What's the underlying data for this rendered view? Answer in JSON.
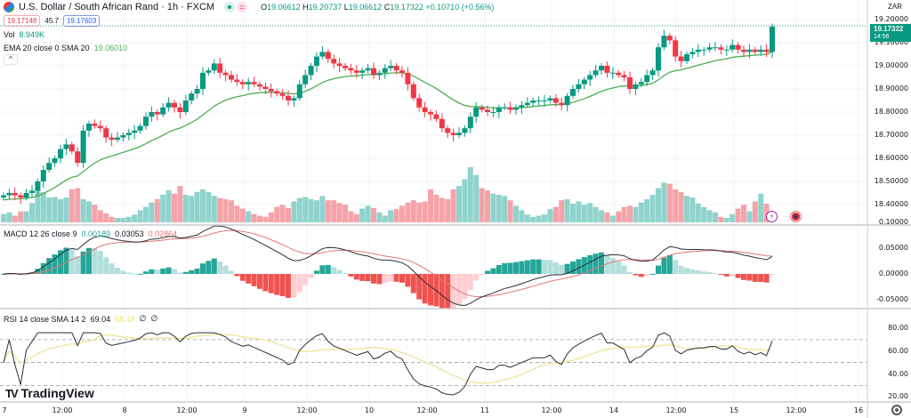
{
  "header": {
    "symbol_title": "U.S. Dollar / South African Rand · 1h · FXCM",
    "ohlc": {
      "open_label": "O",
      "open": "19.06612",
      "high_label": "H",
      "high": "19.20737",
      "low_label": "L",
      "low": "19.06612",
      "close_label": "C",
      "close": "19.17322",
      "change": "+0.10710 (+0.56%)"
    },
    "sell_price": "19.17148",
    "spread": "45.7",
    "buy_price": "19.17603",
    "currency": "ZAR",
    "status_icon_red": "="
  },
  "indicators": {
    "volume": {
      "label": "Vol",
      "value": "8.949K"
    },
    "ema": {
      "label": "EMA 20 close 0 SMA 20",
      "value": "19.06010"
    },
    "macd": {
      "label": "MACD 12 26 close 9",
      "hist": "0.00189",
      "macd": "0.03053",
      "signal": "0.02864"
    },
    "rsi": {
      "label": "RSI 14 close SMA 14 2",
      "rsi": "69.04",
      "sma": "58.48",
      "extra1": "∅",
      "extra2": "∅"
    }
  },
  "price_axis": {
    "labels": [
      "19.20000",
      "19.10000",
      "19.00000",
      "18.90000",
      "18.80000",
      "18.70000",
      "18.60000",
      "18.50000",
      "18.40000"
    ],
    "current_price": "19.17322",
    "countdown": "14:56"
  },
  "macd_axis": {
    "labels": [
      "0.10000",
      "0.05000",
      "0.00000",
      "-0.05000"
    ]
  },
  "rsi_axis": {
    "labels": [
      "80.00",
      "60.00",
      "40.00",
      "20.00"
    ]
  },
  "time_axis": {
    "labels": [
      "7",
      "12:00",
      "8",
      "12:00",
      "9",
      "12:00",
      "10",
      "12:00",
      "11",
      "12:00",
      "14",
      "12:00",
      "15",
      "12:00",
      "16"
    ]
  },
  "branding": {
    "logo_text": "TradingView",
    "logo_mark": "TV"
  },
  "colors": {
    "up": "#089981",
    "down": "#f23645",
    "vol_up": "#8fd3cc",
    "vol_down": "#f5a3a9",
    "ema": "#4caf50",
    "macd_line": "#2a2e39",
    "signal_line": "#e57373",
    "rsi_line": "#2a2e39",
    "rsi_sma": "#f2e7a0",
    "grid": "#f0f3fa"
  },
  "chart_data": {
    "type": "candlestick",
    "title": "U.S. Dollar / South African Rand · 1h · FXCM",
    "ylabel": "ZAR",
    "ylim": [
      18.33,
      19.22
    ],
    "grid": true,
    "close_series": [
      18.44,
      18.45,
      18.44,
      18.43,
      18.45,
      18.46,
      18.5,
      18.55,
      18.58,
      18.6,
      18.64,
      18.66,
      18.63,
      18.58,
      18.72,
      18.75,
      18.74,
      18.73,
      18.69,
      18.68,
      18.69,
      18.7,
      18.71,
      18.72,
      18.74,
      18.78,
      18.8,
      18.79,
      18.82,
      18.84,
      18.82,
      18.8,
      18.85,
      18.88,
      18.9,
      18.97,
      18.98,
      19.01,
      18.97,
      18.96,
      18.94,
      18.93,
      18.92,
      18.93,
      18.92,
      18.91,
      18.9,
      18.89,
      18.88,
      18.87,
      18.85,
      18.86,
      18.92,
      18.96,
      19.0,
      19.04,
      19.06,
      19.03,
      19.01,
      19.0,
      18.99,
      18.98,
      18.97,
      18.98,
      18.99,
      18.96,
      18.97,
      18.99,
      19.0,
      18.98,
      18.97,
      18.92,
      18.86,
      18.82,
      18.8,
      18.79,
      18.77,
      18.73,
      18.71,
      18.7,
      18.71,
      18.73,
      18.78,
      18.82,
      18.81,
      18.8,
      18.8,
      18.82,
      18.82,
      18.81,
      18.82,
      18.83,
      18.84,
      18.85,
      18.85,
      18.85,
      18.86,
      18.84,
      18.83,
      18.87,
      18.9,
      18.92,
      18.94,
      18.96,
      18.98,
      19.0,
      18.97,
      18.97,
      18.96,
      18.95,
      18.9,
      18.92,
      18.93,
      18.96,
      18.98,
      19.08,
      19.13,
      19.11,
      19.04,
      19.02,
      19.05,
      19.06,
      19.07,
      19.07,
      19.08,
      19.08,
      19.07,
      19.07,
      19.09,
      19.07,
      19.06,
      19.07,
      19.06,
      19.07,
      19.06,
      19.17
    ],
    "ema_series_note": "EMA 20 computed from close_series",
    "volume_relative": [
      0.15,
      0.18,
      0.12,
      0.2,
      0.2,
      0.35,
      0.6,
      0.55,
      0.45,
      0.46,
      0.42,
      0.45,
      0.6,
      0.62,
      0.42,
      0.38,
      0.32,
      0.22,
      0.16,
      0.1,
      0.08,
      0.08,
      0.1,
      0.14,
      0.22,
      0.28,
      0.36,
      0.42,
      0.5,
      0.58,
      0.52,
      0.66,
      0.5,
      0.48,
      0.55,
      0.6,
      0.55,
      0.48,
      0.44,
      0.42,
      0.4,
      0.3,
      0.25,
      0.2,
      0.15,
      0.12,
      0.1,
      0.18,
      0.28,
      0.32,
      0.26,
      0.38,
      0.44,
      0.46,
      0.42,
      0.4,
      0.48,
      0.4,
      0.4,
      0.35,
      0.32,
      0.2,
      0.15,
      0.25,
      0.3,
      0.26,
      0.18,
      0.12,
      0.22,
      0.24,
      0.3,
      0.36,
      0.4,
      0.36,
      0.38,
      0.6,
      0.5,
      0.44,
      0.42,
      0.6,
      0.66,
      0.78,
      1.0,
      0.86,
      0.62,
      0.58,
      0.52,
      0.5,
      0.48,
      0.4,
      0.3,
      0.22,
      0.14,
      0.1,
      0.12,
      0.14,
      0.24,
      0.28,
      0.4,
      0.42,
      0.34,
      0.38,
      0.32,
      0.35,
      0.28,
      0.22,
      0.18,
      0.12,
      0.2,
      0.28,
      0.3,
      0.28,
      0.36,
      0.42,
      0.5,
      0.62,
      0.72,
      0.7,
      0.6,
      0.55,
      0.48,
      0.45,
      0.34,
      0.28,
      0.22,
      0.18,
      0.1,
      0.08,
      0.15,
      0.25,
      0.32,
      0.2,
      0.38,
      0.52,
      0.34
    ],
    "macd": {
      "ylim": [
        -0.08,
        0.1
      ],
      "last_hist": 0.00189,
      "last_macd": 0.03053,
      "last_signal": 0.02864
    },
    "rsi": {
      "ylim": [
        18,
        82
      ],
      "levels": [
        70,
        50,
        30
      ],
      "last_rsi": 69.04,
      "last_sma": 58.48
    },
    "x_ticks": [
      "7",
      "12:00",
      "8",
      "12:00",
      "9",
      "12:00",
      "10",
      "12:00",
      "11",
      "12:00",
      "14",
      "12:00",
      "15",
      "12:00",
      "16"
    ]
  }
}
